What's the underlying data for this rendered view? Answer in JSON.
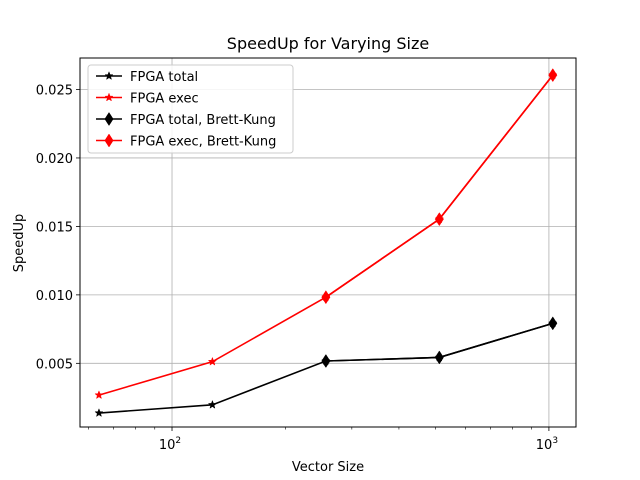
{
  "chart_data": {
    "type": "line",
    "title": "SpeedUp for Varying Size",
    "xlabel": "Vector Size",
    "ylabel": "SpeedUp",
    "x_scale": "log",
    "xlim": [
      57,
      1180
    ],
    "ylim": [
      0.00035,
      0.0273
    ],
    "grid": true,
    "legend_position": "top-left",
    "x_ticks": [
      {
        "value": 100,
        "base": "10",
        "exp": "2"
      },
      {
        "value": 1000,
        "base": "10",
        "exp": "3"
      }
    ],
    "x_minor_ticks": [
      60,
      70,
      80,
      90,
      200,
      300,
      400,
      500,
      600,
      700,
      800,
      900
    ],
    "y_ticks": [
      {
        "value": 0.005,
        "label": "0.005"
      },
      {
        "value": 0.01,
        "label": "0.010"
      },
      {
        "value": 0.015,
        "label": "0.015"
      },
      {
        "value": 0.02,
        "label": "0.020"
      },
      {
        "value": 0.025,
        "label": "0.025"
      }
    ],
    "x": [
      64,
      128,
      256,
      512,
      1024
    ],
    "series": [
      {
        "name": "FPGA total",
        "color": "#000000",
        "marker": "star",
        "values": [
          0.00137,
          0.00197,
          0.00517,
          0.00543,
          0.00792
        ]
      },
      {
        "name": "FPGA exec",
        "color": "#ff0000",
        "marker": "star",
        "values": [
          0.00268,
          0.00512,
          0.00983,
          0.01553,
          0.02605
        ]
      },
      {
        "name": "FPGA total, Brett-Kung",
        "color": "#000000",
        "marker": "diamond",
        "values": [
          null,
          null,
          0.00517,
          0.00543,
          0.00792
        ]
      },
      {
        "name": "FPGA exec, Brett-Kung",
        "color": "#ff0000",
        "marker": "diamond",
        "values": [
          null,
          null,
          0.00983,
          0.01553,
          0.02605
        ]
      }
    ]
  }
}
